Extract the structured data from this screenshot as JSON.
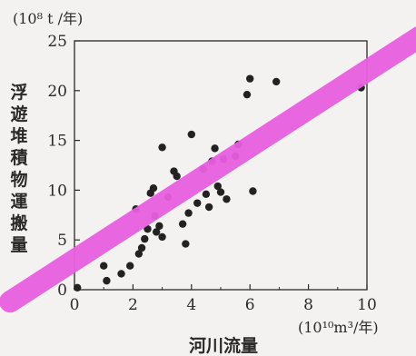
{
  "chart_data": {
    "type": "scatter",
    "xlabel": "河川流量",
    "xunit": "(10¹⁰m³/年)",
    "yunit": "(10⁸ t /年)",
    "ylabel_chars": [
      "浮",
      "遊",
      "堆",
      "積",
      "物",
      "運",
      "搬",
      "量"
    ],
    "xlim": [
      0,
      10
    ],
    "ylim": [
      0,
      25
    ],
    "xticks": [
      "0",
      "2",
      "4",
      "6",
      "8",
      "10"
    ],
    "yticks": [
      "0",
      "5",
      "10",
      "15",
      "20",
      "25"
    ],
    "x_tick_values": [
      0,
      2,
      4,
      6,
      8,
      10
    ],
    "y_tick_values": [
      0,
      5,
      10,
      15,
      20,
      25
    ],
    "grid": false,
    "points": [
      [
        0.1,
        0.2
      ],
      [
        1.0,
        2.4
      ],
      [
        1.1,
        0.9
      ],
      [
        1.6,
        1.6
      ],
      [
        1.9,
        2.4
      ],
      [
        2.1,
        8.1
      ],
      [
        2.2,
        3.6
      ],
      [
        2.3,
        4.2
      ],
      [
        2.4,
        5.1
      ],
      [
        2.5,
        6.1
      ],
      [
        2.6,
        9.7
      ],
      [
        2.7,
        10.2
      ],
      [
        2.75,
        7.4
      ],
      [
        2.8,
        5.8
      ],
      [
        2.9,
        6.4
      ],
      [
        3.0,
        5.3
      ],
      [
        3.0,
        14.3
      ],
      [
        3.2,
        9.3
      ],
      [
        3.4,
        11.9
      ],
      [
        3.5,
        11.4
      ],
      [
        3.7,
        6.6
      ],
      [
        3.8,
        4.6
      ],
      [
        3.9,
        7.7
      ],
      [
        4.0,
        15.6
      ],
      [
        4.2,
        8.7
      ],
      [
        4.4,
        12.1
      ],
      [
        4.5,
        9.6
      ],
      [
        4.6,
        8.3
      ],
      [
        4.7,
        12.9
      ],
      [
        4.8,
        14.2
      ],
      [
        4.9,
        10.4
      ],
      [
        5.0,
        9.8
      ],
      [
        5.1,
        13.1
      ],
      [
        5.2,
        9.1
      ],
      [
        5.5,
        13.4
      ],
      [
        5.6,
        14.6
      ],
      [
        5.9,
        19.6
      ],
      [
        6.0,
        21.2
      ],
      [
        6.1,
        9.9
      ],
      [
        6.9,
        20.9
      ],
      [
        9.8,
        20.3
      ]
    ],
    "highlight_band": {
      "from": [
        -2.2,
        -1.2
      ],
      "to": [
        11.8,
        25.4
      ],
      "color": "#e85fe0"
    },
    "point_color": "#222222"
  }
}
